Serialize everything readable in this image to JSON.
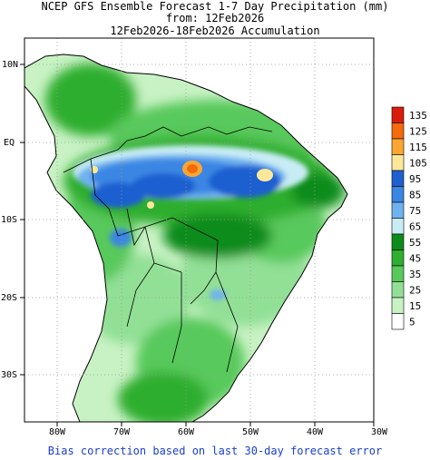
{
  "titles": {
    "line1": "NCEP GFS Ensemble Forecast 1-7 Day Precipitation (mm)",
    "line2": "from: 12Feb2026",
    "line3": "12Feb2026-18Feb2026 Accumulation"
  },
  "axes": {
    "lat_labels": [
      "10N",
      "EQ",
      "10S",
      "20S",
      "30S"
    ],
    "lon_labels": [
      "80W",
      "70W",
      "60W",
      "50W",
      "40W",
      "30W"
    ]
  },
  "legend": {
    "levels": [
      "135",
      "125",
      "115",
      "105",
      "95",
      "85",
      "75",
      "65",
      "55",
      "45",
      "35",
      "25",
      "15",
      "5"
    ],
    "colors": [
      "#d81d0a",
      "#f56a0a",
      "#fba632",
      "#fde89a",
      "#1f5fd0",
      "#3a86e3",
      "#6fb2f0",
      "#c8ecf5",
      "#0c8c1c",
      "#2fae2f",
      "#59c95c",
      "#92e096",
      "#c8f2c4",
      "#ffffff"
    ]
  },
  "footer": "Bias correction based on last 30-day forecast error"
}
